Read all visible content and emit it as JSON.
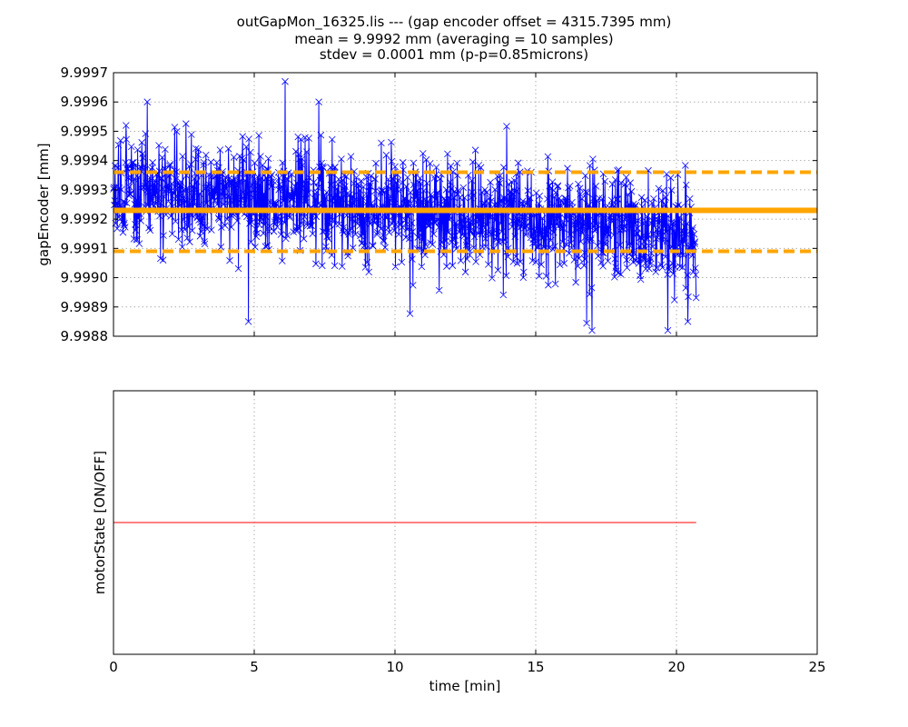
{
  "title_lines": [
    "outGapMon_16325.lis --- (gap encoder offset = 4315.7395 mm)",
    "mean = 9.9992 mm (averaging = 10 samples)",
    "stdev = 0.0001 mm (p-p=0.85microns)"
  ],
  "chart_data": [
    {
      "type": "line",
      "ylabel": "gapEncoder [mm]",
      "xlim": [
        0,
        25
      ],
      "ylim": [
        9.9988,
        9.9997
      ],
      "x_ticks": [
        0,
        5,
        10,
        15,
        20,
        25
      ],
      "y_ticks": [
        "9.9988",
        "9.9989",
        "9.9990",
        "9.9991",
        "9.9992",
        "9.9993",
        "9.9994",
        "9.9995",
        "9.9996",
        "9.9997"
      ],
      "grid": true,
      "series": [
        {
          "color": "#0000ff",
          "marker": "x",
          "x_range": [
            0,
            20.7
          ],
          "n_points": 1400,
          "trend_start": 9.9993,
          "trend_end": 9.99915,
          "noise_std": 0.0001,
          "notable_points": [
            {
              "x": 4.8,
              "y": 9.99885
            },
            {
              "x": 6.1,
              "y": 9.99967
            },
            {
              "x": 17.0,
              "y": 9.99882
            },
            {
              "x": 19.7,
              "y": 9.99882
            },
            {
              "x": 20.4,
              "y": 9.99885
            },
            {
              "x": 7.3,
              "y": 9.9996
            },
            {
              "x": 1.2,
              "y": 9.9996
            }
          ]
        }
      ],
      "hlines": [
        {
          "y": 9.99923,
          "color": "#ffa500",
          "style": "solid"
        },
        {
          "y": 9.99936,
          "color": "#ffa500",
          "style": "dashed"
        },
        {
          "y": 9.99909,
          "color": "#ffa500",
          "style": "dashed"
        }
      ]
    },
    {
      "type": "line",
      "xlabel": "time [min]",
      "ylabel": "motorState [ON/OFF]",
      "xlim": [
        0,
        25
      ],
      "ylim": [
        -1,
        1
      ],
      "x_ticks": [
        0,
        5,
        10,
        15,
        20,
        25
      ],
      "grid": true,
      "series": [
        {
          "color": "#ff0000",
          "x": [
            0,
            20.7
          ],
          "y": [
            0,
            0
          ]
        }
      ]
    }
  ]
}
